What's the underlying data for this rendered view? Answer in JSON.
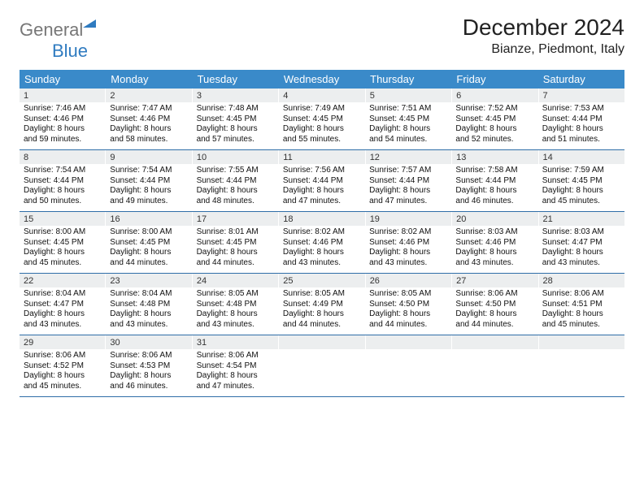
{
  "logo": {
    "part1": "General",
    "part2": "Blue"
  },
  "title": "December 2024",
  "location": "Bianze, Piedmont, Italy",
  "weekdays": [
    "Sunday",
    "Monday",
    "Tuesday",
    "Wednesday",
    "Thursday",
    "Friday",
    "Saturday"
  ],
  "colors": {
    "header_bg": "#3a8ac9",
    "row_divider": "#2f6ea8",
    "daynum_bg": "#eceeef",
    "logo_blue": "#2f7bc0",
    "logo_gray": "#777777"
  },
  "weeks": [
    [
      {
        "n": "1",
        "sr": "Sunrise: 7:46 AM",
        "ss": "Sunset: 4:46 PM",
        "d1": "Daylight: 8 hours",
        "d2": "and 59 minutes."
      },
      {
        "n": "2",
        "sr": "Sunrise: 7:47 AM",
        "ss": "Sunset: 4:46 PM",
        "d1": "Daylight: 8 hours",
        "d2": "and 58 minutes."
      },
      {
        "n": "3",
        "sr": "Sunrise: 7:48 AM",
        "ss": "Sunset: 4:45 PM",
        "d1": "Daylight: 8 hours",
        "d2": "and 57 minutes."
      },
      {
        "n": "4",
        "sr": "Sunrise: 7:49 AM",
        "ss": "Sunset: 4:45 PM",
        "d1": "Daylight: 8 hours",
        "d2": "and 55 minutes."
      },
      {
        "n": "5",
        "sr": "Sunrise: 7:51 AM",
        "ss": "Sunset: 4:45 PM",
        "d1": "Daylight: 8 hours",
        "d2": "and 54 minutes."
      },
      {
        "n": "6",
        "sr": "Sunrise: 7:52 AM",
        "ss": "Sunset: 4:45 PM",
        "d1": "Daylight: 8 hours",
        "d2": "and 52 minutes."
      },
      {
        "n": "7",
        "sr": "Sunrise: 7:53 AM",
        "ss": "Sunset: 4:44 PM",
        "d1": "Daylight: 8 hours",
        "d2": "and 51 minutes."
      }
    ],
    [
      {
        "n": "8",
        "sr": "Sunrise: 7:54 AM",
        "ss": "Sunset: 4:44 PM",
        "d1": "Daylight: 8 hours",
        "d2": "and 50 minutes."
      },
      {
        "n": "9",
        "sr": "Sunrise: 7:54 AM",
        "ss": "Sunset: 4:44 PM",
        "d1": "Daylight: 8 hours",
        "d2": "and 49 minutes."
      },
      {
        "n": "10",
        "sr": "Sunrise: 7:55 AM",
        "ss": "Sunset: 4:44 PM",
        "d1": "Daylight: 8 hours",
        "d2": "and 48 minutes."
      },
      {
        "n": "11",
        "sr": "Sunrise: 7:56 AM",
        "ss": "Sunset: 4:44 PM",
        "d1": "Daylight: 8 hours",
        "d2": "and 47 minutes."
      },
      {
        "n": "12",
        "sr": "Sunrise: 7:57 AM",
        "ss": "Sunset: 4:44 PM",
        "d1": "Daylight: 8 hours",
        "d2": "and 47 minutes."
      },
      {
        "n": "13",
        "sr": "Sunrise: 7:58 AM",
        "ss": "Sunset: 4:44 PM",
        "d1": "Daylight: 8 hours",
        "d2": "and 46 minutes."
      },
      {
        "n": "14",
        "sr": "Sunrise: 7:59 AM",
        "ss": "Sunset: 4:45 PM",
        "d1": "Daylight: 8 hours",
        "d2": "and 45 minutes."
      }
    ],
    [
      {
        "n": "15",
        "sr": "Sunrise: 8:00 AM",
        "ss": "Sunset: 4:45 PM",
        "d1": "Daylight: 8 hours",
        "d2": "and 45 minutes."
      },
      {
        "n": "16",
        "sr": "Sunrise: 8:00 AM",
        "ss": "Sunset: 4:45 PM",
        "d1": "Daylight: 8 hours",
        "d2": "and 44 minutes."
      },
      {
        "n": "17",
        "sr": "Sunrise: 8:01 AM",
        "ss": "Sunset: 4:45 PM",
        "d1": "Daylight: 8 hours",
        "d2": "and 44 minutes."
      },
      {
        "n": "18",
        "sr": "Sunrise: 8:02 AM",
        "ss": "Sunset: 4:46 PM",
        "d1": "Daylight: 8 hours",
        "d2": "and 43 minutes."
      },
      {
        "n": "19",
        "sr": "Sunrise: 8:02 AM",
        "ss": "Sunset: 4:46 PM",
        "d1": "Daylight: 8 hours",
        "d2": "and 43 minutes."
      },
      {
        "n": "20",
        "sr": "Sunrise: 8:03 AM",
        "ss": "Sunset: 4:46 PM",
        "d1": "Daylight: 8 hours",
        "d2": "and 43 minutes."
      },
      {
        "n": "21",
        "sr": "Sunrise: 8:03 AM",
        "ss": "Sunset: 4:47 PM",
        "d1": "Daylight: 8 hours",
        "d2": "and 43 minutes."
      }
    ],
    [
      {
        "n": "22",
        "sr": "Sunrise: 8:04 AM",
        "ss": "Sunset: 4:47 PM",
        "d1": "Daylight: 8 hours",
        "d2": "and 43 minutes."
      },
      {
        "n": "23",
        "sr": "Sunrise: 8:04 AM",
        "ss": "Sunset: 4:48 PM",
        "d1": "Daylight: 8 hours",
        "d2": "and 43 minutes."
      },
      {
        "n": "24",
        "sr": "Sunrise: 8:05 AM",
        "ss": "Sunset: 4:48 PM",
        "d1": "Daylight: 8 hours",
        "d2": "and 43 minutes."
      },
      {
        "n": "25",
        "sr": "Sunrise: 8:05 AM",
        "ss": "Sunset: 4:49 PM",
        "d1": "Daylight: 8 hours",
        "d2": "and 44 minutes."
      },
      {
        "n": "26",
        "sr": "Sunrise: 8:05 AM",
        "ss": "Sunset: 4:50 PM",
        "d1": "Daylight: 8 hours",
        "d2": "and 44 minutes."
      },
      {
        "n": "27",
        "sr": "Sunrise: 8:06 AM",
        "ss": "Sunset: 4:50 PM",
        "d1": "Daylight: 8 hours",
        "d2": "and 44 minutes."
      },
      {
        "n": "28",
        "sr": "Sunrise: 8:06 AM",
        "ss": "Sunset: 4:51 PM",
        "d1": "Daylight: 8 hours",
        "d2": "and 45 minutes."
      }
    ],
    [
      {
        "n": "29",
        "sr": "Sunrise: 8:06 AM",
        "ss": "Sunset: 4:52 PM",
        "d1": "Daylight: 8 hours",
        "d2": "and 45 minutes."
      },
      {
        "n": "30",
        "sr": "Sunrise: 8:06 AM",
        "ss": "Sunset: 4:53 PM",
        "d1": "Daylight: 8 hours",
        "d2": "and 46 minutes."
      },
      {
        "n": "31",
        "sr": "Sunrise: 8:06 AM",
        "ss": "Sunset: 4:54 PM",
        "d1": "Daylight: 8 hours",
        "d2": "and 47 minutes."
      },
      {
        "empty": true
      },
      {
        "empty": true
      },
      {
        "empty": true
      },
      {
        "empty": true
      }
    ]
  ]
}
